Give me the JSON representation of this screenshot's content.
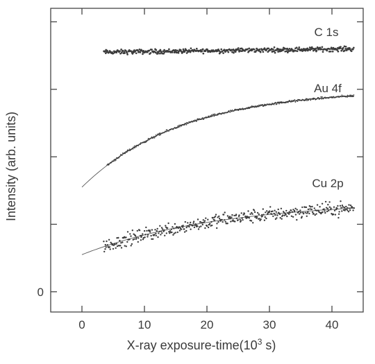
{
  "chart_data": {
    "type": "scatter",
    "xlabel": "X-ray exposure-time(10³ s)",
    "xlabel_main": "X-ray exposure-time(10",
    "xlabel_sup": "3",
    "xlabel_tail": " s)",
    "ylabel": "Intensity (arb. units)",
    "xlim": [
      -5,
      45
    ],
    "ylim": [
      -0.3,
      4.2
    ],
    "x_ticks": [
      0,
      10,
      20,
      30,
      40
    ],
    "y_ticks": [
      0,
      1,
      2,
      3,
      4
    ],
    "y_tick_labels": [
      "0",
      "",
      "",
      "",
      ""
    ],
    "grid": false,
    "legend": "none",
    "series": [
      {
        "name": "C 1s",
        "style": "noisy-flat",
        "x_range": [
          3.5,
          43.5
        ],
        "y_start": 3.55,
        "y_end": 3.6,
        "noise": 0.05,
        "marker_size": 2.0,
        "color": "#3c3c3c"
      },
      {
        "name": "Au 4f",
        "style": "smooth-rise",
        "x_range": [
          4,
          43.5
        ],
        "fit": {
          "x": [
            0,
            43.5
          ],
          "y0": 1.55,
          "y_inf": 3.0,
          "tau": 16
        },
        "noise": 0.025,
        "marker_size": 1.0,
        "color": "#555555"
      },
      {
        "name": "Cu 2p",
        "style": "noisy-rise",
        "x_range": [
          3.5,
          43.5
        ],
        "fit": {
          "x": [
            0,
            43.5
          ],
          "y0": 0.55,
          "y_inf": 1.35,
          "tau": 22
        },
        "noise": 0.15,
        "marker_size": 1.7,
        "color": "#3c3c3c"
      }
    ]
  }
}
